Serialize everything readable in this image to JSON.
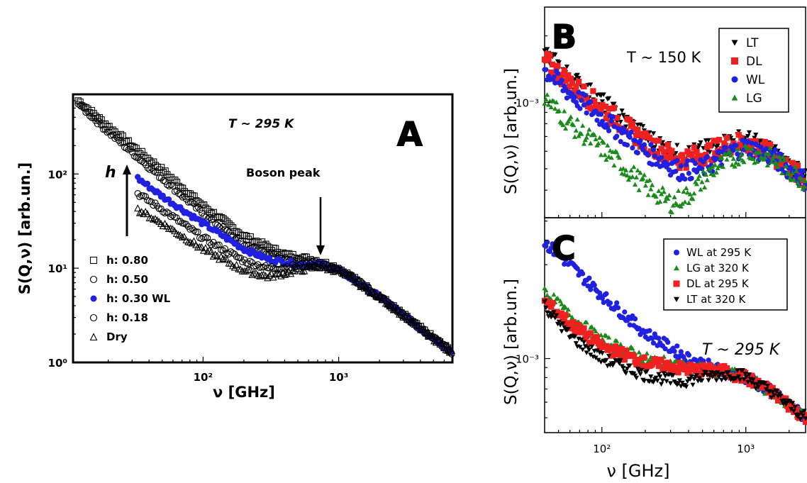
{
  "chart_data": [
    {
      "panel": "A",
      "type": "scatter",
      "temperature_label": "T ~ 295 K",
      "xlabel": "ν  [GHz]",
      "ylabel": "S(Q,ν)  [arb.un.]",
      "xscale": "log",
      "yscale": "log",
      "xlim": [
        11,
        6900
      ],
      "ylim": [
        1,
        700
      ],
      "x_ticks": [
        "10²",
        "10³"
      ],
      "y_ticks": [
        "10⁰",
        "10¹",
        "10²"
      ],
      "annotations": {
        "arrow_label": "h",
        "peak_label": "Boson peak"
      },
      "legend_position": "bottom-left",
      "series": [
        {
          "name": "h: 0.80",
          "marker": "square",
          "color": "#000000",
          "points": [
            [
              12,
              600
            ],
            [
              20,
              320
            ],
            [
              50,
              110
            ],
            [
              100,
              46
            ],
            [
              200,
              22
            ],
            [
              400,
              14
            ],
            [
              700,
              12
            ],
            [
              1000,
              10
            ],
            [
              2000,
              5
            ],
            [
              4000,
              2.3
            ],
            [
              6800,
              1.3
            ]
          ]
        },
        {
          "name": "h: 0.50",
          "marker": "circle",
          "color": "#000000",
          "points": [
            [
              12,
              560
            ],
            [
              20,
              280
            ],
            [
              50,
              90
            ],
            [
              100,
              38
            ],
            [
              200,
              18
            ],
            [
              400,
              12.5
            ],
            [
              700,
              11.5
            ],
            [
              1000,
              10
            ],
            [
              2000,
              5
            ],
            [
              4000,
              2.3
            ],
            [
              6800,
              1.3
            ]
          ]
        },
        {
          "name": "h: 0.30 WL",
          "marker": "filled-circle",
          "color": "#2020e0",
          "points": [
            [
              33,
              90
            ],
            [
              50,
              58
            ],
            [
              100,
              30
            ],
            [
              200,
              16
            ],
            [
              300,
              12.5
            ],
            [
              500,
              11
            ],
            [
              700,
              11
            ],
            [
              1000,
              9.5
            ],
            [
              2000,
              5
            ],
            [
              4000,
              2.3
            ],
            [
              6800,
              1.3
            ]
          ]
        },
        {
          "name": "h: 0.18",
          "marker": "circle",
          "color": "#000000",
          "points": [
            [
              33,
              62
            ],
            [
              50,
              42
            ],
            [
              100,
              21
            ],
            [
              200,
              12
            ],
            [
              300,
              10
            ],
            [
              500,
              10.5
            ],
            [
              700,
              11
            ],
            [
              1000,
              9.5
            ],
            [
              2000,
              5
            ],
            [
              4000,
              2.3
            ],
            [
              6800,
              1.3
            ]
          ]
        },
        {
          "name": "Dry",
          "marker": "triangle",
          "color": "#000000",
          "points": [
            [
              33,
              42
            ],
            [
              50,
              30
            ],
            [
              100,
              16
            ],
            [
              200,
              9.5
            ],
            [
              300,
              8.2
            ],
            [
              500,
              9.5
            ],
            [
              700,
              10.5
            ],
            [
              1000,
              9.5
            ],
            [
              2000,
              5
            ],
            [
              4000,
              2.3
            ],
            [
              6800,
              1.3
            ]
          ]
        }
      ]
    },
    {
      "panel": "B",
      "type": "scatter",
      "temperature_label": "T ~ 150 K",
      "ylabel": "S(Q,ν) [arb.un.]",
      "xscale": "log",
      "yscale": "log",
      "xlim": [
        40,
        2600
      ],
      "y_ticks": [
        "10⁻³"
      ],
      "legend_position": "top-right",
      "series": [
        {
          "name": "LT",
          "marker": "down-triangle",
          "color": "#000000",
          "points": [
            [
              40,
              1.65
            ],
            [
              60,
              1.3
            ],
            [
              100,
              1.0
            ],
            [
              200,
              0.7
            ],
            [
              350,
              0.57
            ],
            [
              500,
              0.6
            ],
            [
              800,
              0.67
            ],
            [
              1000,
              0.68
            ],
            [
              1500,
              0.6
            ],
            [
              2600,
              0.45
            ]
          ]
        },
        {
          "name": "DL",
          "marker": "square",
          "color": "#ee2020",
          "points": [
            [
              40,
              1.55
            ],
            [
              60,
              1.22
            ],
            [
              100,
              0.95
            ],
            [
              200,
              0.66
            ],
            [
              350,
              0.55
            ],
            [
              500,
              0.58
            ],
            [
              800,
              0.65
            ],
            [
              1000,
              0.66
            ],
            [
              1500,
              0.58
            ],
            [
              2600,
              0.44
            ]
          ]
        },
        {
          "name": "WL",
          "marker": "filled-circle",
          "color": "#2020e0",
          "points": [
            [
              40,
              1.4
            ],
            [
              60,
              1.1
            ],
            [
              100,
              0.85
            ],
            [
              200,
              0.6
            ],
            [
              350,
              0.49
            ],
            [
              500,
              0.5
            ],
            [
              800,
              0.6
            ],
            [
              1000,
              0.63
            ],
            [
              1500,
              0.57
            ],
            [
              2600,
              0.44
            ]
          ]
        },
        {
          "name": "LG",
          "marker": "up-triangle",
          "color": "#1a8a1a",
          "points": [
            [
              40,
              1.05
            ],
            [
              60,
              0.8
            ],
            [
              100,
              0.62
            ],
            [
              200,
              0.42
            ],
            [
              300,
              0.35
            ],
            [
              400,
              0.38
            ],
            [
              600,
              0.5
            ],
            [
              1000,
              0.6
            ],
            [
              1500,
              0.56
            ],
            [
              2600,
              0.44
            ]
          ]
        }
      ]
    },
    {
      "panel": "C",
      "type": "scatter",
      "temperature_label": "T ~ 295 K",
      "xlabel": "ν [GHz]",
      "ylabel": "S(Q,ν) [arb.un.]",
      "xscale": "log",
      "yscale": "log",
      "xlim": [
        40,
        2600
      ],
      "x_ticks": [
        "10²",
        "10³"
      ],
      "y_ticks": [
        "10⁻³"
      ],
      "legend_position": "top-right",
      "series": [
        {
          "name": "WL at 295 K",
          "marker": "filled-circle",
          "color": "#2020e0",
          "points": [
            [
              40,
              3.9
            ],
            [
              60,
              3.0
            ],
            [
              100,
              2.1
            ],
            [
              200,
              1.35
            ],
            [
              400,
              1.0
            ],
            [
              700,
              0.86
            ],
            [
              1000,
              0.8
            ],
            [
              1500,
              0.68
            ],
            [
              2600,
              0.5
            ]
          ]
        },
        {
          "name": "LG at 320 K",
          "marker": "up-triangle",
          "color": "#1a8a1a",
          "points": [
            [
              40,
              2.2
            ],
            [
              60,
              1.65
            ],
            [
              100,
              1.25
            ],
            [
              200,
              1.0
            ],
            [
              400,
              0.9
            ],
            [
              700,
              0.86
            ],
            [
              1000,
              0.8
            ],
            [
              1500,
              0.68
            ],
            [
              2600,
              0.5
            ]
          ]
        },
        {
          "name": "DL at 295 K",
          "marker": "square",
          "color": "#ee2020",
          "points": [
            [
              40,
              1.95
            ],
            [
              60,
              1.5
            ],
            [
              100,
              1.15
            ],
            [
              200,
              0.95
            ],
            [
              400,
              0.88
            ],
            [
              700,
              0.86
            ],
            [
              1000,
              0.8
            ],
            [
              1500,
              0.68
            ],
            [
              2600,
              0.5
            ]
          ]
        },
        {
          "name": "LT at 320 K",
          "marker": "down-triangle",
          "color": "#000000",
          "points": [
            [
              40,
              1.85
            ],
            [
              60,
              1.3
            ],
            [
              100,
              1.0
            ],
            [
              200,
              0.82
            ],
            [
              350,
              0.76
            ],
            [
              600,
              0.82
            ],
            [
              900,
              0.84
            ],
            [
              1500,
              0.68
            ],
            [
              2600,
              0.5
            ]
          ]
        }
      ]
    }
  ]
}
